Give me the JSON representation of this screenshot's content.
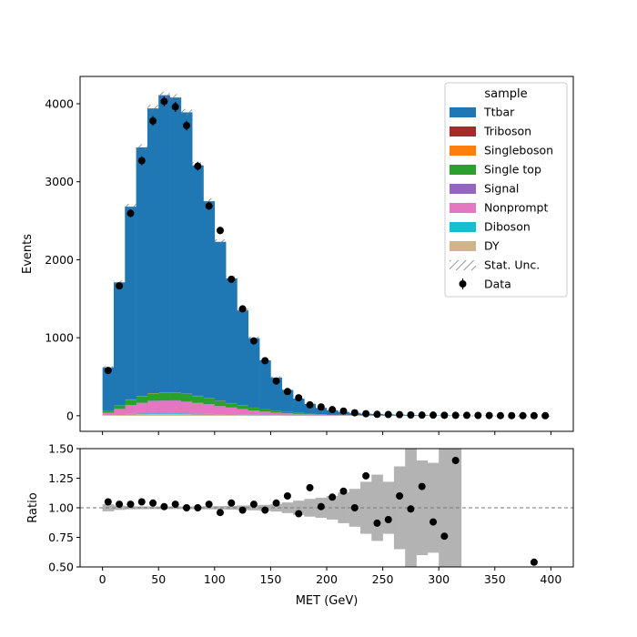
{
  "chart_data": [
    {
      "type": "bar",
      "stacked": true,
      "panel": "main",
      "ylabel": "Events",
      "xlim": [
        -20,
        420
      ],
      "ylim": [
        -200,
        4350
      ],
      "yticks": [
        0,
        1000,
        2000,
        3000,
        4000
      ],
      "bin_edges": [
        0,
        10,
        20,
        30,
        40,
        50,
        60,
        70,
        80,
        90,
        100,
        110,
        120,
        130,
        140,
        150,
        160,
        170,
        180,
        190,
        200,
        210,
        220,
        230,
        240,
        250,
        260,
        270,
        280,
        290,
        300,
        310,
        320,
        330,
        340,
        350,
        360,
        370,
        380,
        390,
        400
      ],
      "series": [
        {
          "name": "DY",
          "color": "#d2b48c",
          "values": [
            5,
            10,
            15,
            18,
            20,
            20,
            20,
            18,
            16,
            14,
            12,
            10,
            8,
            6,
            5,
            4,
            3,
            2,
            2,
            1,
            1,
            1,
            1,
            0,
            0,
            0,
            0,
            0,
            0,
            0,
            0,
            0,
            0,
            0,
            0,
            0,
            0,
            0,
            0,
            0
          ]
        },
        {
          "name": "Diboson",
          "color": "#17becf",
          "values": [
            2,
            5,
            8,
            10,
            12,
            12,
            12,
            11,
            10,
            9,
            8,
            7,
            6,
            5,
            4,
            3,
            2,
            2,
            1,
            1,
            1,
            1,
            1,
            0,
            0,
            0,
            0,
            0,
            0,
            0,
            0,
            0,
            0,
            0,
            0,
            0,
            0,
            0,
            0,
            0
          ]
        },
        {
          "name": "Nonprompt",
          "color": "#e377c2",
          "values": [
            30,
            70,
            110,
            135,
            155,
            158,
            160,
            150,
            135,
            120,
            100,
            85,
            70,
            55,
            42,
            32,
            24,
            18,
            14,
            10,
            8,
            6,
            5,
            4,
            3,
            2,
            2,
            1,
            1,
            1,
            1,
            1,
            0,
            0,
            0,
            0,
            0,
            0,
            0,
            0
          ]
        },
        {
          "name": "Signal",
          "color": "#9467bd",
          "values": [
            1,
            2,
            3,
            4,
            5,
            5,
            5,
            5,
            4,
            4,
            3,
            3,
            2,
            2,
            2,
            1,
            1,
            1,
            1,
            0,
            0,
            0,
            0,
            0,
            0,
            0,
            0,
            0,
            0,
            0,
            0,
            0,
            0,
            0,
            0,
            0,
            0,
            0,
            0,
            0
          ]
        },
        {
          "name": "Single top",
          "color": "#2ca02c",
          "values": [
            20,
            45,
            70,
            85,
            95,
            100,
            100,
            95,
            88,
            78,
            66,
            55,
            45,
            35,
            27,
            21,
            16,
            12,
            9,
            7,
            5,
            4,
            3,
            2,
            2,
            1,
            1,
            1,
            1,
            1,
            1,
            0,
            0,
            0,
            0,
            0,
            0,
            0,
            0,
            0
          ]
        },
        {
          "name": "Singleboson",
          "color": "#ff7f0e",
          "values": [
            1,
            2,
            3,
            3,
            3,
            3,
            3,
            3,
            3,
            2,
            2,
            2,
            2,
            1,
            1,
            1,
            1,
            1,
            1,
            0,
            0,
            0,
            0,
            0,
            0,
            0,
            0,
            0,
            0,
            0,
            0,
            0,
            0,
            0,
            0,
            0,
            0,
            0,
            0,
            0
          ]
        },
        {
          "name": "Triboson",
          "color": "#a52a2a",
          "values": [
            0,
            0,
            0,
            0,
            0,
            0,
            0,
            0,
            0,
            0,
            0,
            0,
            0,
            0,
            0,
            0,
            0,
            0,
            0,
            0,
            0,
            0,
            0,
            0,
            0,
            0,
            0,
            0,
            0,
            0,
            0,
            0,
            0,
            0,
            0,
            0,
            0,
            0,
            0,
            0
          ]
        },
        {
          "name": "Ttbar",
          "color": "#1f77b4",
          "values": [
            561,
            1576,
            2471,
            3185,
            3650,
            3812,
            3780,
            3608,
            2954,
            2523,
            2039,
            1598,
            1217,
            890,
            629,
            428,
            283,
            184,
            122,
            81,
            55,
            37,
            25,
            20,
            17,
            14,
            11,
            8,
            6,
            4,
            3,
            2,
            2,
            1,
            1,
            0,
            0,
            0,
            0,
            0
          ]
        }
      ],
      "stat_unc": [
        15,
        25,
        35,
        40,
        45,
        45,
        45,
        43,
        40,
        37,
        33,
        29,
        25,
        21,
        17,
        14,
        11,
        9,
        7,
        6,
        5,
        4,
        4,
        3,
        3,
        3,
        2,
        2,
        2,
        2,
        2,
        2,
        1,
        1,
        1,
        1,
        1,
        1,
        1,
        1
      ],
      "data": {
        "name": "Data",
        "x": [
          5,
          15,
          25,
          35,
          45,
          55,
          65,
          75,
          85,
          95,
          105,
          115,
          125,
          135,
          145,
          155,
          165,
          175,
          185,
          195,
          205,
          215,
          225,
          235,
          245,
          255,
          265,
          275,
          285,
          295,
          305,
          315,
          325,
          335,
          345,
          355,
          365,
          375,
          385,
          395
        ],
        "y": [
          580,
          1665,
          2595,
          3270,
          3780,
          4030,
          3960,
          3720,
          3200,
          2690,
          2375,
          1750,
          1370,
          960,
          705,
          445,
          310,
          230,
          140,
          112,
          78,
          60,
          38,
          26,
          18,
          16,
          14,
          10,
          8,
          8,
          6,
          5,
          5,
          4,
          3,
          2,
          2,
          1,
          1,
          1
        ]
      },
      "legend": {
        "title": "sample",
        "placement": "top-right",
        "entries": [
          "Ttbar",
          "Triboson",
          "Singleboson",
          "Single top",
          "Signal",
          "Nonprompt",
          "Diboson",
          "DY",
          "Stat. Unc.",
          "Data"
        ]
      }
    },
    {
      "type": "scatter",
      "panel": "ratio",
      "xlabel": "MET (GeV)",
      "ylabel": "Ratio",
      "xlim": [
        -20,
        420
      ],
      "ylim": [
        0.5,
        1.5
      ],
      "xticks": [
        0,
        50,
        100,
        150,
        200,
        250,
        300,
        350,
        400
      ],
      "yticks": [
        0.5,
        0.75,
        1.0,
        1.25,
        1.5
      ],
      "ytick_labels": [
        "0.50",
        "0.75",
        "1.00",
        "1.25",
        "1.50"
      ],
      "reference_line": 1.0,
      "unc_band": [
        0.03,
        0.018,
        0.013,
        0.012,
        0.011,
        0.011,
        0.011,
        0.011,
        0.012,
        0.013,
        0.014,
        0.016,
        0.019,
        0.022,
        0.025,
        0.032,
        0.045,
        0.06,
        0.075,
        0.085,
        0.1,
        0.13,
        0.16,
        0.22,
        0.28,
        0.22,
        0.35,
        0.6,
        0.4,
        0.38,
        0.6,
        0.8,
        null,
        null,
        null,
        null,
        null,
        null,
        null,
        null
      ],
      "points": {
        "x": [
          5,
          15,
          25,
          35,
          45,
          55,
          65,
          75,
          85,
          95,
          105,
          115,
          125,
          135,
          145,
          155,
          165,
          175,
          185,
          195,
          205,
          215,
          225,
          235,
          245,
          255,
          265,
          275,
          285,
          295,
          305,
          315,
          385
        ],
        "y": [
          1.05,
          1.03,
          1.03,
          1.05,
          1.04,
          1.01,
          1.03,
          1.0,
          1.0,
          1.03,
          0.96,
          1.04,
          0.98,
          1.03,
          0.98,
          1.04,
          1.1,
          0.95,
          1.17,
          1.01,
          1.09,
          1.14,
          1.0,
          1.27,
          0.87,
          0.9,
          1.1,
          0.99,
          1.18,
          0.88,
          0.76,
          1.4,
          0.54
        ]
      }
    }
  ]
}
